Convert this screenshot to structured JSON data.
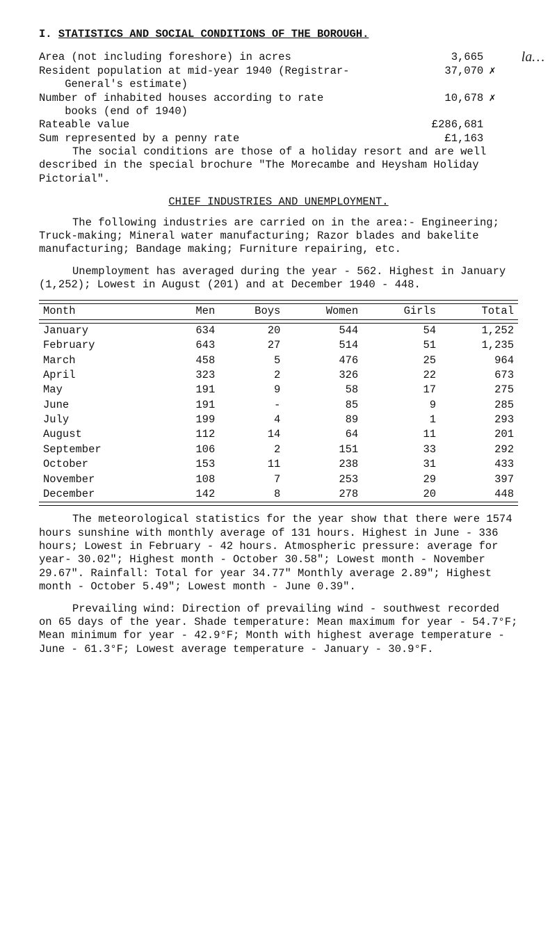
{
  "heading_prefix": "I.",
  "heading_text": "STATISTICS AND SOCIAL CONDITIONS OF THE BOROUGH.",
  "annotation": "la…",
  "stats_rows": [
    {
      "label": "Area (not including foreshore) in acres",
      "value": "3,665",
      "note": ""
    },
    {
      "label": "Resident population at mid-year 1940 (Registrar-\n    General's estimate)",
      "value": "37,070",
      "note": "✗"
    },
    {
      "label": "Number of inhabited houses according to rate\n    books (end of 1940)",
      "value": "10,678",
      "note": "✗"
    },
    {
      "label": "Rateable value",
      "value": "£286,681",
      "note": ""
    },
    {
      "label": "Sum represented by a penny rate",
      "value": "£1,163",
      "note": ""
    }
  ],
  "para_social": "The social conditions are those of a holiday resort and are well described in the special brochure \"The Morecambe and Heysham Holiday Pictorial\".",
  "subhead_chief": "CHIEF INDUSTRIES AND UNEMPLOYMENT.",
  "para_industries": "The following industries are carried on in the area:- Engineering; Truck-making; Mineral water manufac­turing; Razor blades and bakelite manufacturing; Bandage making; Furniture repairing, etc.",
  "para_unemp": "Unemployment has averaged during the year - 562. Highest in January (1,252); Lowest in August (201) and at December 1940 - 448.",
  "unemp_headers": [
    "Month",
    "Men",
    "Boys",
    "Women",
    "Girls",
    "Total"
  ],
  "unemp_data": [
    [
      "January",
      "634",
      "20",
      "544",
      "54",
      "1,252"
    ],
    [
      "February",
      "643",
      "27",
      "514",
      "51",
      "1,235"
    ],
    [
      "March",
      "458",
      "5",
      "476",
      "25",
      "964"
    ],
    [
      "April",
      "323",
      "2",
      "326",
      "22",
      "673"
    ],
    [
      "May",
      "191",
      "9",
      "58",
      "17",
      "275"
    ],
    [
      "June",
      "191",
      "-",
      "85",
      "9",
      "285"
    ],
    [
      "July",
      "199",
      "4",
      "89",
      "1",
      "293"
    ],
    [
      "August",
      "112",
      "14",
      "64",
      "11",
      "201"
    ],
    [
      "September",
      "106",
      "2",
      "151",
      "33",
      "292"
    ],
    [
      "October",
      "153",
      "11",
      "238",
      "31",
      "433"
    ],
    [
      "November",
      "108",
      "7",
      "253",
      "29",
      "397"
    ],
    [
      "December",
      "142",
      "8",
      "278",
      "20",
      "448"
    ]
  ],
  "para_met": "The meteorological statistics for the year show that there were 1574 hours sunshine with monthly average of 131 hours.  Highest in June - 336 hours; Lowest in February - 42 hours.  Atmospheric pressure: average for year- 30.02\"; Highest month - October 30.58\"; Lowest month - November 29.67\".  Rainfall: Total for year 34.77\" Monthly average 2.89\"; Highest month - October 5.49\"; Lowest month - June 0.39\".",
  "para_wind": "Prevailing wind: Direction of prevailing wind - southwest recorded on 65 days of the year.  Shade tempera­ture: Mean maximum for year - 54.7°F; Mean minimum for year - 42.9°F; Month with highest average temperature - June - 61.3°F; Lowest average temperature - January - 30.9°F."
}
